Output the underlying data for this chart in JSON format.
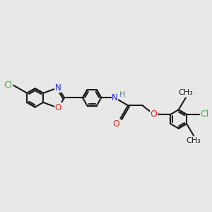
{
  "background_color": "#e8e8e8",
  "line_color": "#1a1a1a",
  "bond_width": 1.5,
  "atom_colors": {
    "Cl": "#33bb33",
    "N": "#2222ee",
    "O": "#ee2222",
    "H": "#558899",
    "C": "#1a1a1a"
  },
  "font_size": 8.5,
  "figsize": [
    3.0,
    3.0
  ],
  "dpi": 100
}
